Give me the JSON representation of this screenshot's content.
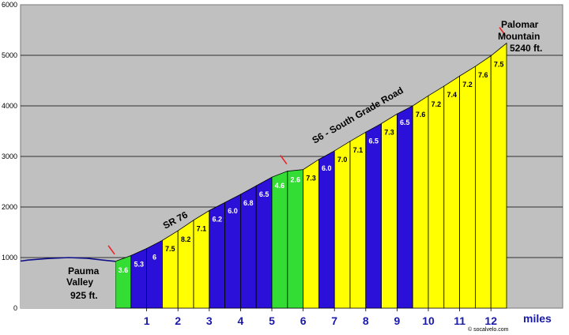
{
  "chart_data": {
    "type": "area",
    "xlabel": "miles",
    "ylabel": "",
    "xlim": [
      -3.3,
      13.6
    ],
    "ylim": [
      0,
      6000
    ],
    "yticks": [
      "0",
      "1000",
      "2000",
      "3000",
      "4000",
      "5000",
      "6000"
    ],
    "xticks": [
      "1",
      "2",
      "3",
      "4",
      "5",
      "6",
      "7",
      "8",
      "9",
      "10",
      "11",
      "12"
    ],
    "grid": true,
    "colors": {
      "background": "#c0c0c0",
      "green": "#33dd33",
      "blue": "#2a10d8",
      "yellow": "#ffff00",
      "grade_label_dark": "#ffffff",
      "grade_label_light": "#000000",
      "marker": "#ee2222",
      "axis_tick_label": "#1a1aa8"
    },
    "valley_profile": {
      "x": [
        -3.3,
        -2.8,
        -2.2,
        -1.5,
        -0.9,
        -0.4,
        0
      ],
      "elevation": [
        930,
        950,
        980,
        1000,
        985,
        950,
        925
      ]
    },
    "segments": [
      {
        "grade": "3.6",
        "start_elev": 925,
        "end_elev": 1040,
        "color": "green"
      },
      {
        "grade": "5.3",
        "start_elev": 1040,
        "end_elev": 1180,
        "color": "blue"
      },
      {
        "grade": "6",
        "start_elev": 1180,
        "end_elev": 1340,
        "color": "blue"
      },
      {
        "grade": "7.5",
        "start_elev": 1340,
        "end_elev": 1530,
        "color": "yellow"
      },
      {
        "grade": "8.2",
        "start_elev": 1530,
        "end_elev": 1740,
        "color": "yellow"
      },
      {
        "grade": "7.1",
        "start_elev": 1740,
        "end_elev": 1930,
        "color": "yellow"
      },
      {
        "grade": "6.2",
        "start_elev": 1930,
        "end_elev": 2090,
        "color": "blue"
      },
      {
        "grade": "6.0",
        "start_elev": 2090,
        "end_elev": 2250,
        "color": "blue"
      },
      {
        "grade": "6.8",
        "start_elev": 2250,
        "end_elev": 2420,
        "color": "blue"
      },
      {
        "grade": "6.5",
        "start_elev": 2420,
        "end_elev": 2590,
        "color": "blue"
      },
      {
        "grade": "4.6",
        "start_elev": 2590,
        "end_elev": 2710,
        "color": "green"
      },
      {
        "grade": "2.6",
        "start_elev": 2710,
        "end_elev": 2740,
        "color": "green"
      },
      {
        "grade": "7.3",
        "start_elev": 2740,
        "end_elev": 2940,
        "color": "yellow"
      },
      {
        "grade": "6.0",
        "start_elev": 2940,
        "end_elev": 3110,
        "color": "blue"
      },
      {
        "grade": "7.0",
        "start_elev": 3110,
        "end_elev": 3300,
        "color": "yellow"
      },
      {
        "grade": "7.1",
        "start_elev": 3300,
        "end_elev": 3480,
        "color": "yellow"
      },
      {
        "grade": "6.5",
        "start_elev": 3480,
        "end_elev": 3650,
        "color": "blue"
      },
      {
        "grade": "7.3",
        "start_elev": 3650,
        "end_elev": 3840,
        "color": "yellow"
      },
      {
        "grade": "6.5",
        "start_elev": 3840,
        "end_elev": 4000,
        "color": "blue"
      },
      {
        "grade": "7.6",
        "start_elev": 4000,
        "end_elev": 4200,
        "color": "yellow"
      },
      {
        "grade": "7.2",
        "start_elev": 4200,
        "end_elev": 4390,
        "color": "yellow"
      },
      {
        "grade": "7.4",
        "start_elev": 4390,
        "end_elev": 4590,
        "color": "yellow"
      },
      {
        "grade": "7.2",
        "start_elev": 4590,
        "end_elev": 4780,
        "color": "yellow"
      },
      {
        "grade": "7.6",
        "start_elev": 4780,
        "end_elev": 4990,
        "color": "yellow"
      },
      {
        "grade": "7.5",
        "start_elev": 4990,
        "end_elev": 5240,
        "color": "yellow"
      }
    ],
    "annotations": {
      "start_name": "Pauma Valley",
      "start_name_line1": "Pauma",
      "start_name_line2": "Valley",
      "start_elev": "925 ft.",
      "end_name": "Palomar Mountain",
      "end_name_line1": "Palomar",
      "end_name_line2": "Mountain",
      "end_elev": "5240 ft.",
      "road1": "SR 76",
      "road2": "S6 - South Grade Road"
    },
    "credit": "© socalvelo.com"
  }
}
